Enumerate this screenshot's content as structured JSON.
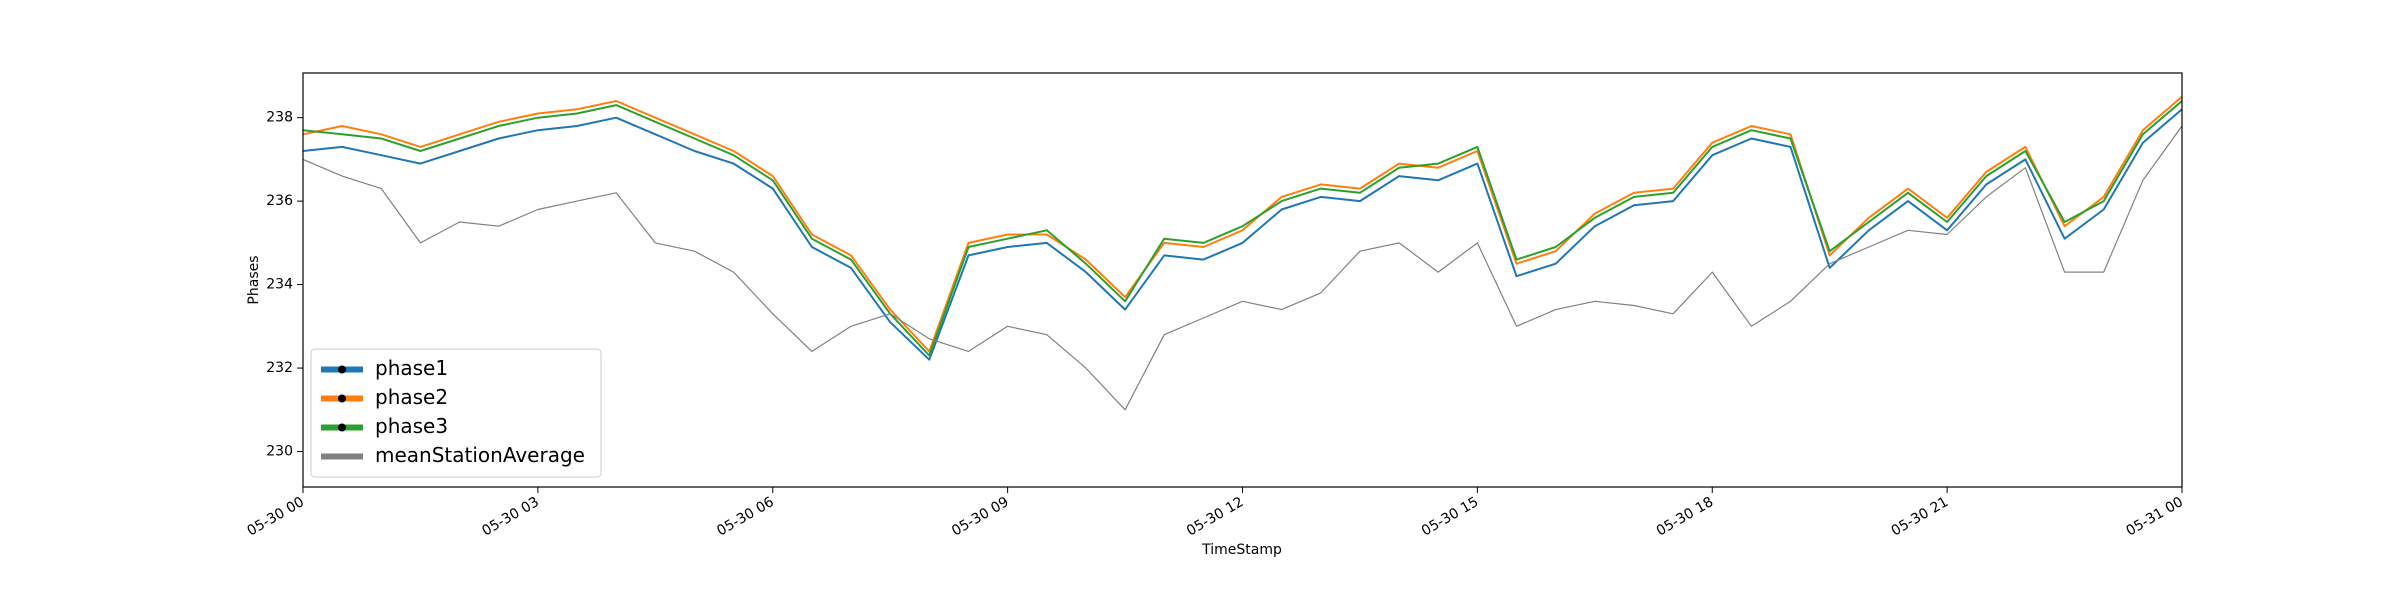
{
  "chart_data": {
    "type": "line",
    "x_label": "TimeStamp",
    "y_label": "Phases",
    "x": [
      0,
      0.5,
      1,
      1.5,
      2,
      2.5,
      3,
      3.5,
      4,
      4.5,
      5,
      5.5,
      6,
      6.5,
      7,
      7.5,
      8,
      8.5,
      9,
      9.5,
      10,
      10.5,
      11,
      11.5,
      12,
      12.5,
      13,
      13.5,
      14,
      14.5,
      15,
      15.5,
      16,
      16.5,
      17,
      17.5,
      18,
      18.5,
      19,
      19.5,
      20,
      20.5,
      21,
      21.5,
      22,
      22.5,
      23,
      23.5,
      24
    ],
    "series": [
      {
        "name": "phase1",
        "color": "#1f77b4",
        "values": [
          237.2,
          237.3,
          237.1,
          236.9,
          237.2,
          237.5,
          237.7,
          237.8,
          238.0,
          237.6,
          237.2,
          236.9,
          236.3,
          234.9,
          234.4,
          233.1,
          232.2,
          234.7,
          234.9,
          235.0,
          234.3,
          233.4,
          234.7,
          234.6,
          235.0,
          235.8,
          236.1,
          236.0,
          236.6,
          236.5,
          236.9,
          234.2,
          234.5,
          235.4,
          235.9,
          236.0,
          237.1,
          237.5,
          237.3,
          234.4,
          235.3,
          236.0,
          235.3,
          236.4,
          237.0,
          235.1,
          235.8,
          237.4,
          238.2
        ]
      },
      {
        "name": "phase2",
        "color": "#ff7f0e",
        "values": [
          237.6,
          237.8,
          237.6,
          237.3,
          237.6,
          237.9,
          238.1,
          238.2,
          238.4,
          238.0,
          237.6,
          237.2,
          236.6,
          235.2,
          234.7,
          233.4,
          232.4,
          235.0,
          235.2,
          235.2,
          234.6,
          233.7,
          235.0,
          234.9,
          235.3,
          236.1,
          236.4,
          236.3,
          236.9,
          236.8,
          237.2,
          234.5,
          234.8,
          235.7,
          236.2,
          236.3,
          237.4,
          237.8,
          237.6,
          234.7,
          235.6,
          236.3,
          235.6,
          236.7,
          237.3,
          235.4,
          236.1,
          237.7,
          238.5
        ]
      },
      {
        "name": "phase3",
        "color": "#2ca02c",
        "values": [
          237.7,
          237.6,
          237.5,
          237.2,
          237.5,
          237.8,
          238.0,
          238.1,
          238.3,
          237.9,
          237.5,
          237.1,
          236.5,
          235.1,
          234.6,
          233.3,
          232.3,
          234.9,
          235.1,
          235.3,
          234.5,
          233.6,
          235.1,
          235.0,
          235.4,
          236.0,
          236.3,
          236.2,
          236.8,
          236.9,
          237.3,
          234.6,
          234.9,
          235.6,
          236.1,
          236.2,
          237.3,
          237.7,
          237.5,
          234.8,
          235.5,
          236.2,
          235.5,
          236.6,
          237.2,
          235.5,
          236.0,
          237.6,
          238.4
        ]
      },
      {
        "name": "meanStationAverage",
        "color": "#808080",
        "values": [
          237.0,
          236.6,
          236.3,
          235.0,
          235.5,
          235.4,
          235.8,
          236.0,
          236.2,
          235.0,
          234.8,
          234.3,
          233.3,
          232.4,
          233.0,
          233.3,
          232.7,
          232.4,
          233.0,
          232.8,
          232.0,
          231.0,
          232.8,
          233.2,
          233.6,
          233.4,
          233.8,
          234.8,
          235.0,
          234.3,
          235.0,
          233.0,
          233.4,
          233.6,
          233.5,
          233.3,
          234.3,
          233.0,
          233.6,
          234.5,
          234.9,
          235.3,
          235.2,
          236.1,
          236.8,
          234.3,
          234.3,
          236.5,
          237.8
        ]
      }
    ],
    "xlim": [
      0,
      24
    ],
    "xticks": [
      {
        "value": 0,
        "label": "05-30 00"
      },
      {
        "value": 3,
        "label": "05-30 03"
      },
      {
        "value": 6,
        "label": "05-30 06"
      },
      {
        "value": 9,
        "label": "05-30 09"
      },
      {
        "value": 12,
        "label": "05-30 12"
      },
      {
        "value": 15,
        "label": "05-30 15"
      },
      {
        "value": 18,
        "label": "05-30 18"
      },
      {
        "value": 21,
        "label": "05-30 21"
      },
      {
        "value": 24,
        "label": "05-31 00"
      }
    ],
    "ylim": [
      229.15,
      239.07
    ],
    "yticks": [
      230,
      232,
      234,
      236,
      238
    ],
    "grid": false,
    "legend": "lower left"
  }
}
